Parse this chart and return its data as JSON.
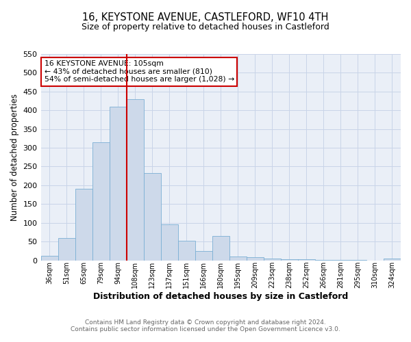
{
  "title": "16, KEYSTONE AVENUE, CASTLEFORD, WF10 4TH",
  "subtitle": "Size of property relative to detached houses in Castleford",
  "xlabel": "Distribution of detached houses by size in Castleford",
  "ylabel": "Number of detached properties",
  "bin_labels": [
    "36sqm",
    "51sqm",
    "65sqm",
    "79sqm",
    "94sqm",
    "108sqm",
    "123sqm",
    "137sqm",
    "151sqm",
    "166sqm",
    "180sqm",
    "195sqm",
    "209sqm",
    "223sqm",
    "238sqm",
    "252sqm",
    "266sqm",
    "281sqm",
    "295sqm",
    "310sqm",
    "324sqm"
  ],
  "bar_heights": [
    12,
    60,
    190,
    315,
    410,
    430,
    233,
    95,
    52,
    25,
    65,
    10,
    8,
    5,
    2,
    2,
    1,
    1,
    1,
    0,
    4
  ],
  "bar_color": "#cdd9ea",
  "bar_edge_color": "#7bafd4",
  "vline_x": 5,
  "vline_color": "#cc0000",
  "ylim": [
    0,
    550
  ],
  "yticks": [
    0,
    50,
    100,
    150,
    200,
    250,
    300,
    350,
    400,
    450,
    500,
    550
  ],
  "annotation_line1": "16 KEYSTONE AVENUE: 105sqm",
  "annotation_line2": "← 43% of detached houses are smaller (810)",
  "annotation_line3": "54% of semi-detached houses are larger (1,028) →",
  "annotation_box_color": "#ffffff",
  "annotation_box_edge": "#cc0000",
  "footnote1": "Contains HM Land Registry data © Crown copyright and database right 2024.",
  "footnote2": "Contains public sector information licensed under the Open Government Licence v3.0.",
  "bg_color": "#eaeff7",
  "grid_color": "#c8d4e8"
}
